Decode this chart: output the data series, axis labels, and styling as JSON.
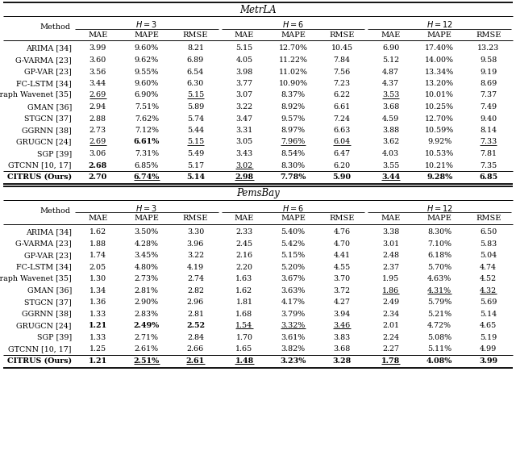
{
  "metrla_title": "MetrLA",
  "pemsbay_title": "PemsBay",
  "metrla_rows": [
    {
      "method": "ARIMA [34]",
      "vals": [
        "3.99",
        "9.60%",
        "8.21",
        "5.15",
        "12.70%",
        "10.45",
        "6.90",
        "17.40%",
        "13.23"
      ],
      "bold": [],
      "underline": []
    },
    {
      "method": "G-VARMA [23]",
      "vals": [
        "3.60",
        "9.62%",
        "6.89",
        "4.05",
        "11.22%",
        "7.84",
        "5.12",
        "14.00%",
        "9.58"
      ],
      "bold": [],
      "underline": []
    },
    {
      "method": "GP-VAR [23]",
      "vals": [
        "3.56",
        "9.55%",
        "6.54",
        "3.98",
        "11.02%",
        "7.56",
        "4.87",
        "13.34%",
        "9.19"
      ],
      "bold": [],
      "underline": []
    },
    {
      "method": "FC-LSTM [34]",
      "vals": [
        "3.44",
        "9.60%",
        "6.30",
        "3.77",
        "10.90%",
        "7.23",
        "4.37",
        "13.20%",
        "8.69"
      ],
      "bold": [],
      "underline": []
    },
    {
      "method": "Graph Wavenet [35]",
      "vals": [
        "2.69",
        "6.90%",
        "5.15",
        "3.07",
        "8.37%",
        "6.22",
        "3.53",
        "10.01%",
        "7.37"
      ],
      "bold": [],
      "underline": [
        0,
        2,
        6
      ]
    },
    {
      "method": "GMAN [36]",
      "vals": [
        "2.94",
        "7.51%",
        "5.89",
        "3.22",
        "8.92%",
        "6.61",
        "3.68",
        "10.25%",
        "7.49"
      ],
      "bold": [],
      "underline": []
    },
    {
      "method": "STGCN [37]",
      "vals": [
        "2.88",
        "7.62%",
        "5.74",
        "3.47",
        "9.57%",
        "7.24",
        "4.59",
        "12.70%",
        "9.40"
      ],
      "bold": [],
      "underline": []
    },
    {
      "method": "GGRNN [38]",
      "vals": [
        "2.73",
        "7.12%",
        "5.44",
        "3.31",
        "8.97%",
        "6.63",
        "3.88",
        "10.59%",
        "8.14"
      ],
      "bold": [],
      "underline": []
    },
    {
      "method": "GRUGCN [24]",
      "vals": [
        "2.69",
        "6.61%",
        "5.15",
        "3.05",
        "7.96%",
        "6.04",
        "3.62",
        "9.92%",
        "7.33"
      ],
      "bold": [
        1
      ],
      "underline": [
        0,
        2,
        4,
        5,
        8
      ]
    },
    {
      "method": "SGP [39]",
      "vals": [
        "3.06",
        "7.31%",
        "5.49",
        "3.43",
        "8.54%",
        "6.47",
        "4.03",
        "10.53%",
        "7.81"
      ],
      "bold": [],
      "underline": []
    },
    {
      "method": "GTCNN [10, 17]",
      "vals": [
        "2.68",
        "6.85%",
        "5.17",
        "3.02",
        "8.30%",
        "6.20",
        "3.55",
        "10.21%",
        "7.35"
      ],
      "bold": [
        0
      ],
      "underline": [
        3
      ]
    },
    {
      "method": "CITRUS (Ours)",
      "vals": [
        "2.70",
        "6.74%",
        "5.14",
        "2.98",
        "7.78%",
        "5.90",
        "3.44",
        "9.28%",
        "6.85"
      ],
      "bold": [
        0,
        1,
        2,
        3,
        4,
        5,
        6,
        7,
        8
      ],
      "underline": [
        1,
        3,
        6
      ]
    }
  ],
  "pemsbay_rows": [
    {
      "method": "ARIMA [34]",
      "vals": [
        "1.62",
        "3.50%",
        "3.30",
        "2.33",
        "5.40%",
        "4.76",
        "3.38",
        "8.30%",
        "6.50"
      ],
      "bold": [],
      "underline": []
    },
    {
      "method": "G-VARMA [23]",
      "vals": [
        "1.88",
        "4.28%",
        "3.96",
        "2.45",
        "5.42%",
        "4.70",
        "3.01",
        "7.10%",
        "5.83"
      ],
      "bold": [],
      "underline": []
    },
    {
      "method": "GP-VAR [23]",
      "vals": [
        "1.74",
        "3.45%",
        "3.22",
        "2.16",
        "5.15%",
        "4.41",
        "2.48",
        "6.18%",
        "5.04"
      ],
      "bold": [],
      "underline": []
    },
    {
      "method": "FC-LSTM [34]",
      "vals": [
        "2.05",
        "4.80%",
        "4.19",
        "2.20",
        "5.20%",
        "4.55",
        "2.37",
        "5.70%",
        "4.74"
      ],
      "bold": [],
      "underline": []
    },
    {
      "method": "Graph Wavenet [35]",
      "vals": [
        "1.30",
        "2.73%",
        "2.74",
        "1.63",
        "3.67%",
        "3.70",
        "1.95",
        "4.63%",
        "4.52"
      ],
      "bold": [],
      "underline": []
    },
    {
      "method": "GMAN [36]",
      "vals": [
        "1.34",
        "2.81%",
        "2.82",
        "1.62",
        "3.63%",
        "3.72",
        "1.86",
        "4.31%",
        "4.32"
      ],
      "bold": [],
      "underline": [
        6,
        7,
        8
      ]
    },
    {
      "method": "STGCN [37]",
      "vals": [
        "1.36",
        "2.90%",
        "2.96",
        "1.81",
        "4.17%",
        "4.27",
        "2.49",
        "5.79%",
        "5.69"
      ],
      "bold": [],
      "underline": []
    },
    {
      "method": "GGRNN [38]",
      "vals": [
        "1.33",
        "2.83%",
        "2.81",
        "1.68",
        "3.79%",
        "3.94",
        "2.34",
        "5.21%",
        "5.14"
      ],
      "bold": [],
      "underline": []
    },
    {
      "method": "GRUGCN [24]",
      "vals": [
        "1.21",
        "2.49%",
        "2.52",
        "1.54",
        "3.32%",
        "3.46",
        "2.01",
        "4.72%",
        "4.65"
      ],
      "bold": [
        0,
        1,
        2
      ],
      "underline": [
        3,
        4,
        5
      ]
    },
    {
      "method": "SGP [39]",
      "vals": [
        "1.33",
        "2.71%",
        "2.84",
        "1.70",
        "3.61%",
        "3.83",
        "2.24",
        "5.08%",
        "5.19"
      ],
      "bold": [],
      "underline": []
    },
    {
      "method": "GTCNN [10, 17]",
      "vals": [
        "1.25",
        "2.61%",
        "2.66",
        "1.65",
        "3.82%",
        "3.68",
        "2.27",
        "5.11%",
        "4.99"
      ],
      "bold": [],
      "underline": []
    },
    {
      "method": "CITRUS (Ours)",
      "vals": [
        "1.21",
        "2.51%",
        "2.61",
        "1.48",
        "3.23%",
        "3.28",
        "1.78",
        "4.08%",
        "3.99"
      ],
      "bold": [
        0,
        1,
        2,
        3,
        4,
        5,
        6,
        7,
        8
      ],
      "underline": [
        1,
        2,
        3,
        6
      ]
    }
  ]
}
